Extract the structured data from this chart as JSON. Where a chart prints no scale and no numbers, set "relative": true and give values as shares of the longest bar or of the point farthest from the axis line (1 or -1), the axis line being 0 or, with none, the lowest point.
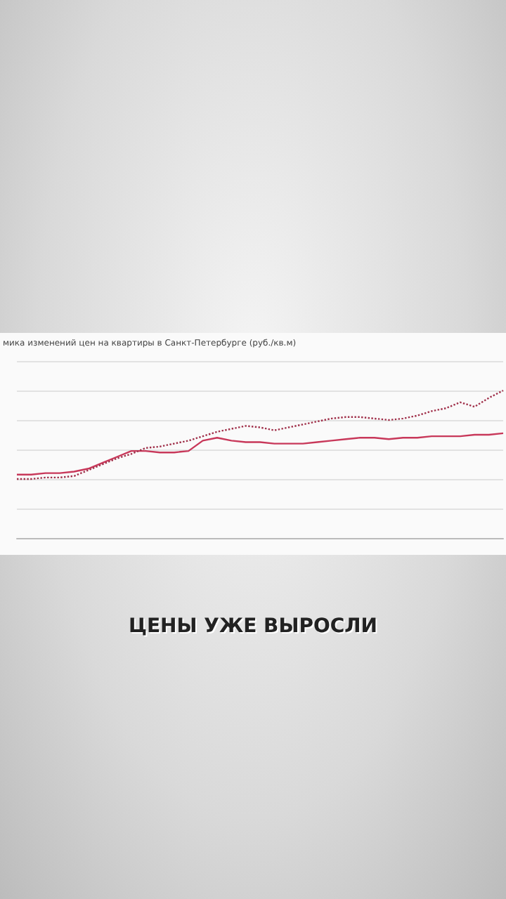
{
  "chart_data": {
    "type": "line",
    "title": "мика изменений цен на квартиры в Санкт-Петербурге (руб./кв.м)",
    "relative": true,
    "grid": "y",
    "marker": "none",
    "tick_labels": false,
    "categories": [
      null,
      null,
      null,
      null,
      null,
      null,
      null,
      null,
      null,
      null,
      null,
      null,
      null,
      null,
      null,
      null,
      null,
      null,
      null,
      null,
      null,
      null,
      null,
      null,
      null,
      null,
      null,
      null,
      null,
      null,
      null,
      null,
      null,
      null,
      null
    ],
    "series": [
      {
        "color": "#c8385a",
        "line_style": "solid",
        "values": [
          0.43,
          0.43,
          0.44,
          0.44,
          0.45,
          0.47,
          0.51,
          0.55,
          0.59,
          0.59,
          0.58,
          0.58,
          0.59,
          0.66,
          0.68,
          0.66,
          0.65,
          0.65,
          0.64,
          0.64,
          0.64,
          0.65,
          0.66,
          0.67,
          0.68,
          0.68,
          0.67,
          0.68,
          0.68,
          0.69,
          0.69,
          0.69,
          0.7,
          0.7,
          0.71
        ]
      },
      {
        "color": "#a0304a",
        "line_style": "dotted",
        "values": [
          0.4,
          0.4,
          0.41,
          0.41,
          0.42,
          0.46,
          0.5,
          0.54,
          0.57,
          0.61,
          0.62,
          0.64,
          0.66,
          0.69,
          0.72,
          0.74,
          0.76,
          0.75,
          0.73,
          0.75,
          0.77,
          0.79,
          0.81,
          0.82,
          0.82,
          0.81,
          0.8,
          0.81,
          0.83,
          0.86,
          0.88,
          0.92,
          0.89,
          0.95,
          1
        ]
      }
    ],
    "annotations": [
      "ЦЕНЫ УЖЕ ВЫРОСЛИ"
    ]
  }
}
